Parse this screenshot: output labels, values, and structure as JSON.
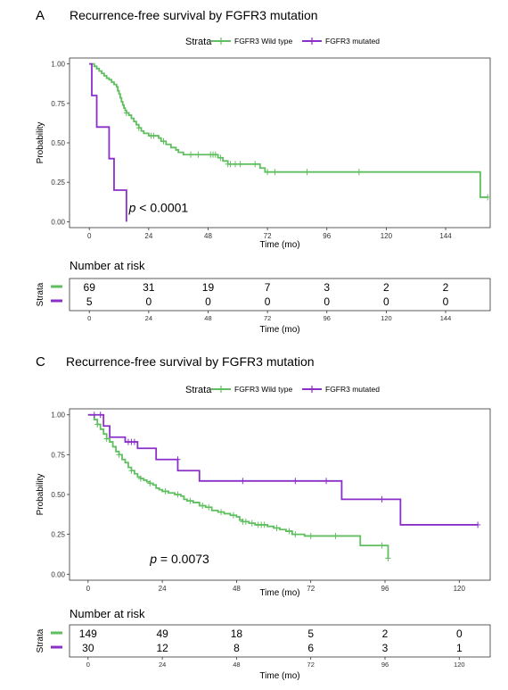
{
  "colors": {
    "wild": "#5fbf5f",
    "mut": "#8b2fc9",
    "frame": "#333333",
    "grid": "#000000"
  },
  "chart_data": [
    {
      "type": "line",
      "panel_letter": "A",
      "title": "Recurrence-free survival by FGFR3 mutation",
      "legend": {
        "title": "Strata",
        "placement": "top"
      },
      "xlabel": "Time (mo)",
      "ylabel": "Probability",
      "xlim": [
        -8,
        162
      ],
      "ylim": [
        0,
        1
      ],
      "xticks": [
        0,
        24,
        48,
        72,
        96,
        120,
        144
      ],
      "yticks": [
        0,
        0.25,
        0.5,
        0.75,
        1
      ],
      "ytick_labels": [
        "0.00",
        "0.25",
        "0.50",
        "0.75",
        "1.00"
      ],
      "annotation": {
        "italic": "p",
        "text": " < 0.0001",
        "x": 16,
        "y": 0.06
      },
      "series": [
        {
          "name": "FGFR3 Wild type",
          "color_key": "wild",
          "steps": [
            [
              0,
              1.0
            ],
            [
              2,
              0.985
            ],
            [
              3,
              0.97
            ],
            [
              4,
              0.955
            ],
            [
              5,
              0.94
            ],
            [
              6,
              0.925
            ],
            [
              7,
              0.91
            ],
            [
              8,
              0.9
            ],
            [
              9,
              0.885
            ],
            [
              10,
              0.87
            ],
            [
              11,
              0.855
            ],
            [
              11.5,
              0.83
            ],
            [
              12,
              0.81
            ],
            [
              12.5,
              0.785
            ],
            [
              13,
              0.76
            ],
            [
              13.5,
              0.74
            ],
            [
              14,
              0.72
            ],
            [
              14.5,
              0.705
            ],
            [
              15,
              0.69
            ],
            [
              16,
              0.675
            ],
            [
              17,
              0.655
            ],
            [
              18,
              0.635
            ],
            [
              19,
              0.615
            ],
            [
              20,
              0.595
            ],
            [
              21,
              0.575
            ],
            [
              22,
              0.56
            ],
            [
              24,
              0.545
            ],
            [
              28,
              0.53
            ],
            [
              29,
              0.51
            ],
            [
              31,
              0.49
            ],
            [
              33,
              0.47
            ],
            [
              35,
              0.455
            ],
            [
              36,
              0.44
            ],
            [
              38,
              0.425
            ],
            [
              52,
              0.405
            ],
            [
              54,
              0.385
            ],
            [
              56,
              0.365
            ],
            [
              69,
              0.34
            ],
            [
              71,
              0.315
            ],
            [
              158,
              0.155
            ]
          ],
          "end": 161,
          "censors": [
            [
              15,
              0.69
            ],
            [
              20,
              0.595
            ],
            [
              25,
              0.545
            ],
            [
              26,
              0.545
            ],
            [
              30,
              0.51
            ],
            [
              41,
              0.425
            ],
            [
              44,
              0.425
            ],
            [
              49,
              0.425
            ],
            [
              50,
              0.425
            ],
            [
              51,
              0.425
            ],
            [
              53,
              0.405
            ],
            [
              56,
              0.365
            ],
            [
              57,
              0.365
            ],
            [
              59,
              0.365
            ],
            [
              61,
              0.365
            ],
            [
              67,
              0.365
            ],
            [
              72,
              0.315
            ],
            [
              75,
              0.315
            ],
            [
              88,
              0.315
            ],
            [
              109,
              0.315
            ],
            [
              161,
              0.155
            ]
          ]
        },
        {
          "name": "FGFR3 mutated",
          "color_key": "mut",
          "steps": [
            [
              0,
              1.0
            ],
            [
              1,
              0.8
            ],
            [
              3,
              0.6
            ],
            [
              8,
              0.4
            ],
            [
              10,
              0.2
            ],
            [
              15,
              0.0
            ]
          ],
          "end": 15,
          "censors": []
        }
      ],
      "risk_table": {
        "title": "Number at risk",
        "strata_label": "Strata",
        "xlabel": "Time (mo)",
        "times": [
          0,
          24,
          48,
          72,
          96,
          120,
          144
        ],
        "rows": [
          {
            "color_key": "wild",
            "values": [
              "69",
              "31",
              "19",
              "7",
              "3",
              "2",
              "2"
            ]
          },
          {
            "color_key": "mut",
            "values": [
              "5",
              "0",
              "0",
              "0",
              "0",
              "0",
              "0"
            ]
          }
        ]
      }
    },
    {
      "type": "line",
      "panel_letter": "C",
      "title": "Recurrence-free survival by FGFR3 mutation",
      "legend": {
        "title": "Strata",
        "placement": "top"
      },
      "xlabel": "Time (mo)",
      "ylabel": "Probability",
      "xlim": [
        -6,
        130
      ],
      "ylim": [
        0,
        1
      ],
      "xticks": [
        0,
        24,
        48,
        72,
        96,
        120
      ],
      "yticks": [
        0,
        0.25,
        0.5,
        0.75,
        1
      ],
      "ytick_labels": [
        "0.00",
        "0.25",
        "0.50",
        "0.75",
        "1.00"
      ],
      "annotation": {
        "italic": "p",
        "text": " = 0.0073",
        "x": 20,
        "y": 0.07
      },
      "series": [
        {
          "name": "FGFR3 Wild type",
          "color_key": "wild",
          "steps": [
            [
              0,
              1.0
            ],
            [
              2,
              0.97
            ],
            [
              3,
              0.94
            ],
            [
              4,
              0.91
            ],
            [
              5,
              0.88
            ],
            [
              6,
              0.85
            ],
            [
              7,
              0.83
            ],
            [
              8,
              0.8
            ],
            [
              9,
              0.77
            ],
            [
              10,
              0.75
            ],
            [
              11,
              0.72
            ],
            [
              12,
              0.7
            ],
            [
              13,
              0.67
            ],
            [
              14,
              0.65
            ],
            [
              15,
              0.63
            ],
            [
              16,
              0.61
            ],
            [
              17,
              0.6
            ],
            [
              18,
              0.59
            ],
            [
              19,
              0.58
            ],
            [
              20,
              0.57
            ],
            [
              21,
              0.56
            ],
            [
              22,
              0.54
            ],
            [
              23,
              0.53
            ],
            [
              24,
              0.52
            ],
            [
              26,
              0.51
            ],
            [
              28,
              0.5
            ],
            [
              30,
              0.49
            ],
            [
              31,
              0.47
            ],
            [
              32,
              0.46
            ],
            [
              34,
              0.45
            ],
            [
              36,
              0.43
            ],
            [
              38,
              0.42
            ],
            [
              40,
              0.4
            ],
            [
              42,
              0.39
            ],
            [
              44,
              0.38
            ],
            [
              46,
              0.37
            ],
            [
              48,
              0.36
            ],
            [
              49,
              0.34
            ],
            [
              50,
              0.33
            ],
            [
              52,
              0.32
            ],
            [
              54,
              0.31
            ],
            [
              58,
              0.3
            ],
            [
              60,
              0.29
            ],
            [
              62,
              0.28
            ],
            [
              64,
              0.27
            ],
            [
              66,
              0.25
            ],
            [
              70,
              0.24
            ],
            [
              88,
              0.18
            ],
            [
              97,
              0.1
            ]
          ],
          "end": 97,
          "censors": [
            [
              3,
              0.94
            ],
            [
              6,
              0.85
            ],
            [
              10,
              0.75
            ],
            [
              14,
              0.65
            ],
            [
              17,
              0.6
            ],
            [
              20,
              0.57
            ],
            [
              25,
              0.52
            ],
            [
              29,
              0.5
            ],
            [
              33,
              0.46
            ],
            [
              37,
              0.43
            ],
            [
              39,
              0.42
            ],
            [
              43,
              0.39
            ],
            [
              47,
              0.37
            ],
            [
              50,
              0.33
            ],
            [
              51,
              0.33
            ],
            [
              53,
              0.32
            ],
            [
              55,
              0.31
            ],
            [
              56,
              0.31
            ],
            [
              57,
              0.31
            ],
            [
              61,
              0.29
            ],
            [
              65,
              0.27
            ],
            [
              67,
              0.25
            ],
            [
              72,
              0.24
            ],
            [
              80,
              0.24
            ],
            [
              95,
              0.18
            ],
            [
              97,
              0.1
            ]
          ]
        },
        {
          "name": "FGFR3 mutated",
          "color_key": "mut",
          "steps": [
            [
              0,
              1.0
            ],
            [
              5,
              0.93
            ],
            [
              7,
              0.86
            ],
            [
              12,
              0.83
            ],
            [
              16,
              0.79
            ],
            [
              22,
              0.72
            ],
            [
              29,
              0.65
            ],
            [
              36,
              0.585
            ],
            [
              82,
              0.47
            ],
            [
              101,
              0.31
            ]
          ],
          "end": 126,
          "censors": [
            [
              2,
              1.0
            ],
            [
              4,
              1.0
            ],
            [
              13,
              0.83
            ],
            [
              14,
              0.83
            ],
            [
              15,
              0.83
            ],
            [
              29,
              0.72
            ],
            [
              50,
              0.585
            ],
            [
              67,
              0.585
            ],
            [
              77,
              0.585
            ],
            [
              95,
              0.47
            ],
            [
              126,
              0.31
            ]
          ]
        }
      ],
      "risk_table": {
        "title": "Number at risk",
        "strata_label": "Strata",
        "xlabel": "Time (mo)",
        "times": [
          0,
          24,
          48,
          72,
          96,
          120
        ],
        "rows": [
          {
            "color_key": "wild",
            "values": [
              "149",
              "49",
              "18",
              "5",
              "2",
              "0"
            ]
          },
          {
            "color_key": "mut",
            "values": [
              "30",
              "12",
              "8",
              "6",
              "3",
              "1"
            ]
          }
        ]
      }
    }
  ]
}
